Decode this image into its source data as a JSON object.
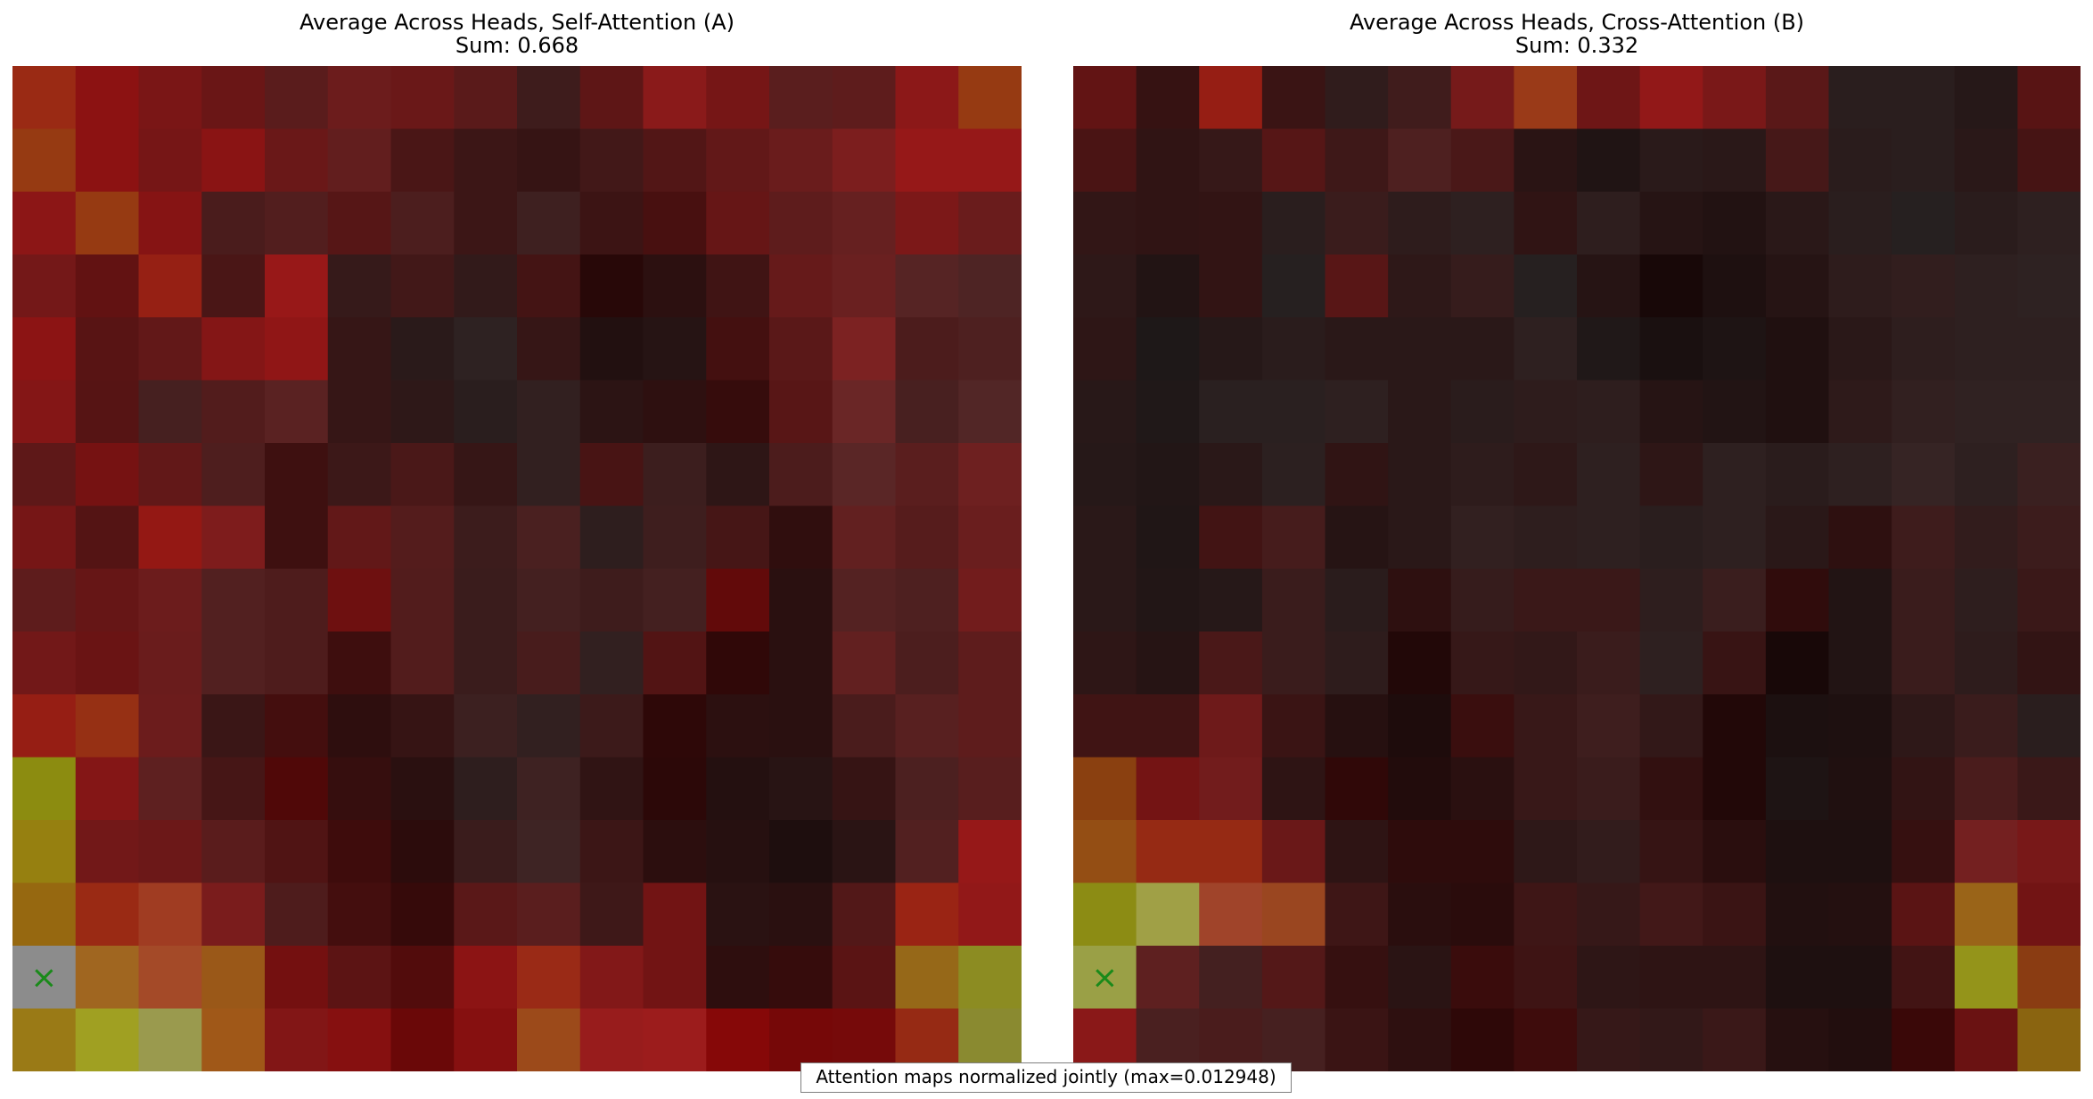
{
  "chart_data": [
    {
      "type": "heatmap",
      "title": "Average Across Heads, Self-Attention (A)",
      "subtitle": "Sum: 0.668",
      "rows": 16,
      "cols": 16,
      "marker": {
        "row": 14,
        "col": 0,
        "symbol": "×"
      },
      "cell_colors": [
        [
          "#9a2a14",
          "#8c1212",
          "#7a1616",
          "#6a1616",
          "#5a1c1c",
          "#6c1c1c",
          "#6a1818",
          "#5a1a1a",
          "#3e1c1c",
          "#5e1616",
          "#8a1a1a",
          "#761616",
          "#5a1e1e",
          "#5e1c1c",
          "#8c1818",
          "#963a12"
        ],
        [
          "#963a12",
          "#8c1212",
          "#761616",
          "#8a1414",
          "#6a1818",
          "#621e1e",
          "#4a1616",
          "#3c1616",
          "#361414",
          "#421818",
          "#521616",
          "#621818",
          "#6a1c1c",
          "#7c1e1e",
          "#961818",
          "#961818"
        ],
        [
          "#8c1616",
          "#963a12",
          "#861414",
          "#4a1c1c",
          "#521e1e",
          "#561616",
          "#4c1e1e",
          "#3c1616",
          "#3e2020",
          "#3c1414",
          "#481010",
          "#661616",
          "#5e1c1c",
          "#662020",
          "#7c1818",
          "#6a1c1c"
        ],
        [
          "#741818",
          "#621212",
          "#962014",
          "#4a1616",
          "#981818",
          "#361a1a",
          "#421818",
          "#321a1a",
          "#441414",
          "#280808",
          "#2c1010",
          "#401414",
          "#661a1a",
          "#6a2020",
          "#562424",
          "#4e2424"
        ],
        [
          "#8c1414",
          "#581414",
          "#621818",
          "#841616",
          "#901616",
          "#361616",
          "#2a1a1a",
          "#2e2222",
          "#361616",
          "#221010",
          "#261414",
          "#441010",
          "#5a1818",
          "#7c2222",
          "#4c1c1c",
          "#4e2020"
        ],
        [
          "#841616",
          "#561414",
          "#462020",
          "#521c1c",
          "#5a2222",
          "#361616",
          "#2e1818",
          "#2a1e1e",
          "#322020",
          "#2c1414",
          "#2e1010",
          "#360c0c",
          "#581616",
          "#6a2626",
          "#482020",
          "#522626"
        ],
        [
          "#5e1818",
          "#761212",
          "#621818",
          "#4e1e1e",
          "#3e1010",
          "#3c1818",
          "#4a1818",
          "#361616",
          "#322020",
          "#481414",
          "#3c1e1e",
          "#2e1616",
          "#4c1c1c",
          "#5a2626",
          "#5a1e1e",
          "#6e2020"
        ],
        [
          "#761616",
          "#541414",
          "#941814",
          "#7e1c1c",
          "#3e1010",
          "#621818",
          "#541c1c",
          "#3c1c1c",
          "#4a2020",
          "#2e1e1e",
          "#3e1e1e",
          "#461616",
          "#300e0e",
          "#622020",
          "#561c1c",
          "#6a1e1e"
        ],
        [
          "#5e1c1c",
          "#661616",
          "#6c1c1c",
          "#522020",
          "#4e1c1c",
          "#6e1010",
          "#521c1c",
          "#3a1c1c",
          "#442020",
          "#3e1c1c",
          "#442020",
          "#620a0a",
          "#2a1010",
          "#542222",
          "#4e2020",
          "#721c1c"
        ],
        [
          "#721818",
          "#6a1414",
          "#6a1c1c",
          "#522020",
          "#4e1c1c",
          "#3e0e0e",
          "#521c1c",
          "#3a1c1c",
          "#481c1c",
          "#322020",
          "#521414",
          "#300808",
          "#2a1010",
          "#622020",
          "#4c1e1e",
          "#5e1c1c"
        ],
        [
          "#961e14",
          "#963014",
          "#6c1c1c",
          "#3a1616",
          "#440e0e",
          "#2e0e0e",
          "#361414",
          "#3c2020",
          "#322020",
          "#3c1a1a",
          "#2e0808",
          "#2c1010",
          "#2a1010",
          "#4a1c1c",
          "#582020",
          "#5e1c1c"
        ],
        [
          "#8c8c10",
          "#841616",
          "#5e2020",
          "#461616",
          "#500808",
          "#360e0e",
          "#2a1010",
          "#2e1e1e",
          "#3e2222",
          "#301414",
          "#2c0808",
          "#241010",
          "#281414",
          "#361414",
          "#4c2020",
          "#581e1e"
        ],
        [
          "#968010",
          "#721818",
          "#6c1818",
          "#5a1c1c",
          "#501414",
          "#3e0c0c",
          "#2c0c0c",
          "#3a1c1c",
          "#3e2424",
          "#3c1616",
          "#2c0e0e",
          "#261010",
          "#1e0e0e",
          "#2a1414",
          "#522020",
          "#961818"
        ],
        [
          "#966810",
          "#9a2a14",
          "#a03c22",
          "#7a1c1c",
          "#4e1c1c",
          "#440e0e",
          "#360a0a",
          "#5a1818",
          "#5a1e1e",
          "#3e1818",
          "#721414",
          "#2a1212",
          "#2a1010",
          "#521818",
          "#9a2414",
          "#921818"
        ],
        [
          "#8c8c8c",
          "#a06620",
          "#a44a28",
          "#9a5818",
          "#741010",
          "#5c1414",
          "#520c0c",
          "#8c1414",
          "#9a2a16",
          "#821818",
          "#721414",
          "#2e0e0e",
          "#360c0c",
          "#5a1414",
          "#966818",
          "#8c8c22"
        ],
        [
          "#9a7a16",
          "#a0a022",
          "#9a9a4e",
          "#a05818",
          "#821616",
          "#861010",
          "#6a0808",
          "#861010",
          "#9c4a1a",
          "#981c1c",
          "#9c1c1c",
          "#860808",
          "#760808",
          "#760a0a",
          "#962a14",
          "#8a8a30"
        ]
      ]
    },
    {
      "type": "heatmap",
      "title": "Average Across Heads, Cross-Attention (B)",
      "subtitle": "Sum: 0.332",
      "rows": 16,
      "cols": 16,
      "marker": {
        "row": 14,
        "col": 0,
        "symbol": "×"
      },
      "cell_colors": [
        [
          "#621414",
          "#361212",
          "#961e14",
          "#3a1414",
          "#301c1c",
          "#401c1c",
          "#761a1a",
          "#9a3a18",
          "#6e1616",
          "#921818",
          "#7a1818",
          "#5a1818",
          "#2a1e1e",
          "#2a1e1e",
          "#261818",
          "#581414"
        ],
        [
          "#4a1414",
          "#301414",
          "#361818",
          "#561616",
          "#3e1818",
          "#4e2020",
          "#4a1818",
          "#2a1414",
          "#201414",
          "#2a1a1a",
          "#2a1818",
          "#461818",
          "#2a1c1c",
          "#2a1e1e",
          "#2a1818",
          "#461414"
        ],
        [
          "#321616",
          "#301414",
          "#321414",
          "#2a1e1e",
          "#3a1c1c",
          "#2e1c1c",
          "#2e2020",
          "#301414",
          "#2e1e1e",
          "#261414",
          "#221212",
          "#2a1818",
          "#2a1e1e",
          "#262020",
          "#2a1c1c",
          "#2e2020"
        ],
        [
          "#2e1818",
          "#221414",
          "#321414",
          "#262020",
          "#581616",
          "#2e1818",
          "#361c1c",
          "#262020",
          "#261414",
          "#180808",
          "#1e1010",
          "#261414",
          "#2e1c1c",
          "#321e1e",
          "#2e2020",
          "#2e2222"
        ],
        [
          "#2e1616",
          "#1e1818",
          "#261818",
          "#2a1c1c",
          "#2a1818",
          "#2a1818",
          "#2a1818",
          "#2e2020",
          "#201818",
          "#1a1010",
          "#1e1414",
          "#201010",
          "#2a1818",
          "#2e1e1e",
          "#2e2020",
          "#2e2020"
        ],
        [
          "#281818",
          "#201818",
          "#2a2020",
          "#2a2020",
          "#2e2020",
          "#2a1818",
          "#2a1c1c",
          "#2e1c1c",
          "#2e1e1e",
          "#261414",
          "#221414",
          "#201010",
          "#2e1a1a",
          "#322020",
          "#302222",
          "#302222"
        ],
        [
          "#261818",
          "#221616",
          "#2a1818",
          "#2c2020",
          "#301414",
          "#2a1818",
          "#2e1c1c",
          "#2e1818",
          "#2e2020",
          "#2e1616",
          "#2e2020",
          "#2a1c1c",
          "#2e2020",
          "#362424",
          "#2e2020",
          "#3a2020"
        ],
        [
          "#2a1818",
          "#201616",
          "#421414",
          "#461c1c",
          "#261414",
          "#2a1818",
          "#322020",
          "#2e1e1e",
          "#2e2020",
          "#2a1e1e",
          "#2e2020",
          "#2a1818",
          "#2e1010",
          "#3e1c1c",
          "#321c1c",
          "#3c1c1c"
        ],
        [
          "#2a1818",
          "#221616",
          "#261818",
          "#3a1c1c",
          "#2a1c1c",
          "#2e1010",
          "#361c1c",
          "#3a1818",
          "#3a1818",
          "#2e1e1e",
          "#3a1e1e",
          "#300c0c",
          "#221414",
          "#3a1c1c",
          "#2e1e1e",
          "#3a1818"
        ],
        [
          "#2e1616",
          "#261414",
          "#4a1818",
          "#3a1c1c",
          "#2e1c1c",
          "#220808",
          "#361818",
          "#321818",
          "#3a1c1c",
          "#2e2020",
          "#381414",
          "#180808",
          "#221414",
          "#3a1c1c",
          "#2e1c1c",
          "#321414"
        ],
        [
          "#401414",
          "#401414",
          "#6e1a1a",
          "#3a1414",
          "#261010",
          "#1e0c0c",
          "#3a0e0e",
          "#381818",
          "#3e1e1e",
          "#321818",
          "#220808",
          "#1c1010",
          "#1e1010",
          "#2e1818",
          "#3a1c1c",
          "#2a1e1e"
        ],
        [
          "#8a4010",
          "#741414",
          "#721c1c",
          "#2e1414",
          "#300808",
          "#220c0c",
          "#2a1010",
          "#381818",
          "#3a1c1c",
          "#321010",
          "#220808",
          "#1e1414",
          "#201010",
          "#321414",
          "#4a1c1c",
          "#3a1818"
        ],
        [
          "#944e14",
          "#962a14",
          "#962a14",
          "#6a1818",
          "#2e1414",
          "#2e0c0c",
          "#2e0c0c",
          "#2e1818",
          "#321c1c",
          "#361414",
          "#2a0e0e",
          "#1e1010",
          "#1e1010",
          "#361010",
          "#742020",
          "#781818"
        ],
        [
          "#8c8c14",
          "#a0a046",
          "#a0442a",
          "#9a4620",
          "#3e1616",
          "#2a0e0e",
          "#2a0c0c",
          "#3e1616",
          "#361818",
          "#421818",
          "#3a1414",
          "#221010",
          "#241010",
          "#5a1414",
          "#9a6418",
          "#721414"
        ],
        [
          "#9aa046",
          "#5e2020",
          "#442020",
          "#541818",
          "#361010",
          "#2a1414",
          "#3a0c0c",
          "#3e1414",
          "#2e1616",
          "#2e1414",
          "#2e1414",
          "#1e1010",
          "#1e1010",
          "#421414",
          "#94941a",
          "#8a3c12"
        ],
        [
          "#8a1818",
          "#4a2020",
          "#4a1c1c",
          "#462020",
          "#3a1414",
          "#2e1010",
          "#2e0808",
          "#3e0c0c",
          "#361818",
          "#321818",
          "#3a1818",
          "#261010",
          "#220e0e",
          "#3a0808",
          "#6a1212",
          "#8a6410"
        ]
      ]
    }
  ],
  "footer_note": "Attention maps normalized jointly (max=0.012948)"
}
